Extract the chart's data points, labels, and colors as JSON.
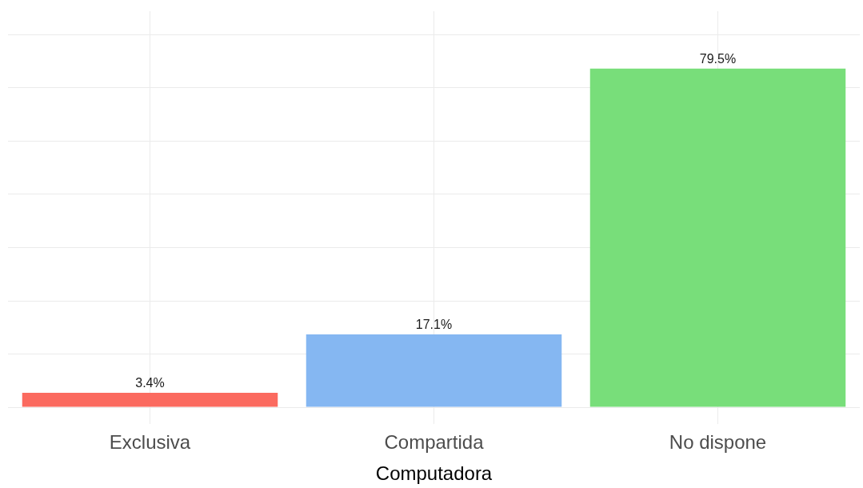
{
  "chart_data": {
    "type": "bar",
    "xlabel": "Computadora",
    "categories": [
      "Exclusiva",
      "Compartida",
      "No dispone"
    ],
    "values": [
      3.4,
      17.1,
      79.5
    ],
    "colors": [
      "#fb6a5f",
      "#85b7f2",
      "#78de7a"
    ],
    "data_labels": true,
    "value_labels": [
      "3.4%",
      "17.1%",
      "79.5%"
    ],
    "ylim": [
      -4,
      93
    ],
    "yticks": [
      {
        "value": 0,
        "label": null
      },
      {
        "value": 12.5,
        "label": null
      },
      {
        "value": 25,
        "label": null
      },
      {
        "value": 37.5,
        "label": null
      },
      {
        "value": 50,
        "label": null
      },
      {
        "value": 62.5,
        "label": null
      },
      {
        "value": 75,
        "label": null
      },
      {
        "value": 87.5,
        "label": null
      }
    ],
    "grid": true,
    "tick_labels": "x",
    "legend": false
  }
}
